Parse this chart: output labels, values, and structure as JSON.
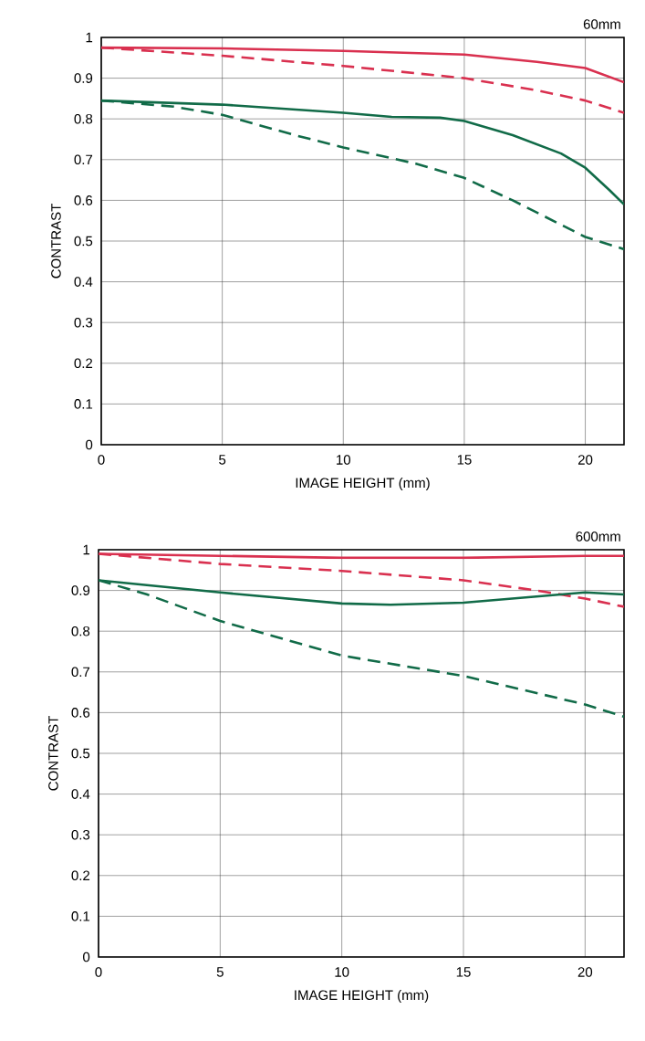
{
  "chart_data": [
    {
      "type": "line",
      "title": "60mm",
      "xlabel": "IMAGE HEIGHT (mm)",
      "ylabel": "CONTRAST",
      "xlim": [
        0,
        21.6
      ],
      "ylim": [
        0,
        1
      ],
      "xticks": [
        0,
        5,
        10,
        15,
        20
      ],
      "yticks": [
        0,
        0.1,
        0.2,
        0.3,
        0.4,
        0.5,
        0.6,
        0.7,
        0.8,
        0.9,
        1
      ],
      "grid": true,
      "series": [
        {
          "color": "#d9304f",
          "line_style": "solid",
          "x": [
            0,
            5,
            10,
            15,
            18,
            20,
            21.6
          ],
          "values": [
            0.975,
            0.973,
            0.967,
            0.958,
            0.94,
            0.925,
            0.89
          ]
        },
        {
          "color": "#d9304f",
          "line_style": "dashed",
          "x": [
            0,
            5,
            10,
            15,
            18,
            20,
            21.6
          ],
          "values": [
            0.975,
            0.955,
            0.93,
            0.9,
            0.87,
            0.845,
            0.815
          ]
        },
        {
          "color": "#116b48",
          "line_style": "solid",
          "x": [
            0,
            5,
            10,
            12,
            14,
            15,
            17,
            19,
            20,
            21,
            21.6
          ],
          "values": [
            0.845,
            0.835,
            0.815,
            0.805,
            0.803,
            0.795,
            0.76,
            0.715,
            0.68,
            0.625,
            0.59
          ]
        },
        {
          "color": "#116b48",
          "line_style": "dashed",
          "x": [
            0,
            3,
            5,
            8,
            10,
            13,
            15,
            17,
            19,
            20,
            21.6
          ],
          "values": [
            0.845,
            0.83,
            0.81,
            0.76,
            0.73,
            0.69,
            0.655,
            0.6,
            0.54,
            0.51,
            0.48
          ]
        }
      ]
    },
    {
      "type": "line",
      "title": "600mm",
      "xlabel": "IMAGE HEIGHT (mm)",
      "ylabel": "CONTRAST",
      "xlim": [
        0,
        21.6
      ],
      "ylim": [
        0,
        1
      ],
      "xticks": [
        0,
        5,
        10,
        15,
        20
      ],
      "yticks": [
        0,
        0.1,
        0.2,
        0.3,
        0.4,
        0.5,
        0.6,
        0.7,
        0.8,
        0.9,
        1
      ],
      "grid": true,
      "series": [
        {
          "color": "#d9304f",
          "line_style": "solid",
          "x": [
            0,
            5,
            10,
            15,
            20,
            21.6
          ],
          "values": [
            0.99,
            0.985,
            0.98,
            0.98,
            0.985,
            0.985
          ]
        },
        {
          "color": "#d9304f",
          "line_style": "dashed",
          "x": [
            0,
            5,
            10,
            15,
            18,
            20,
            21.6
          ],
          "values": [
            0.99,
            0.965,
            0.948,
            0.925,
            0.9,
            0.88,
            0.86
          ]
        },
        {
          "color": "#116b48",
          "line_style": "solid",
          "x": [
            0,
            5,
            10,
            12,
            15,
            18,
            20,
            21.6
          ],
          "values": [
            0.925,
            0.895,
            0.868,
            0.865,
            0.87,
            0.885,
            0.895,
            0.89
          ]
        },
        {
          "color": "#116b48",
          "line_style": "dashed",
          "x": [
            0,
            2,
            5,
            10,
            15,
            20,
            21.6
          ],
          "values": [
            0.925,
            0.89,
            0.825,
            0.74,
            0.69,
            0.62,
            0.59
          ]
        }
      ]
    }
  ]
}
